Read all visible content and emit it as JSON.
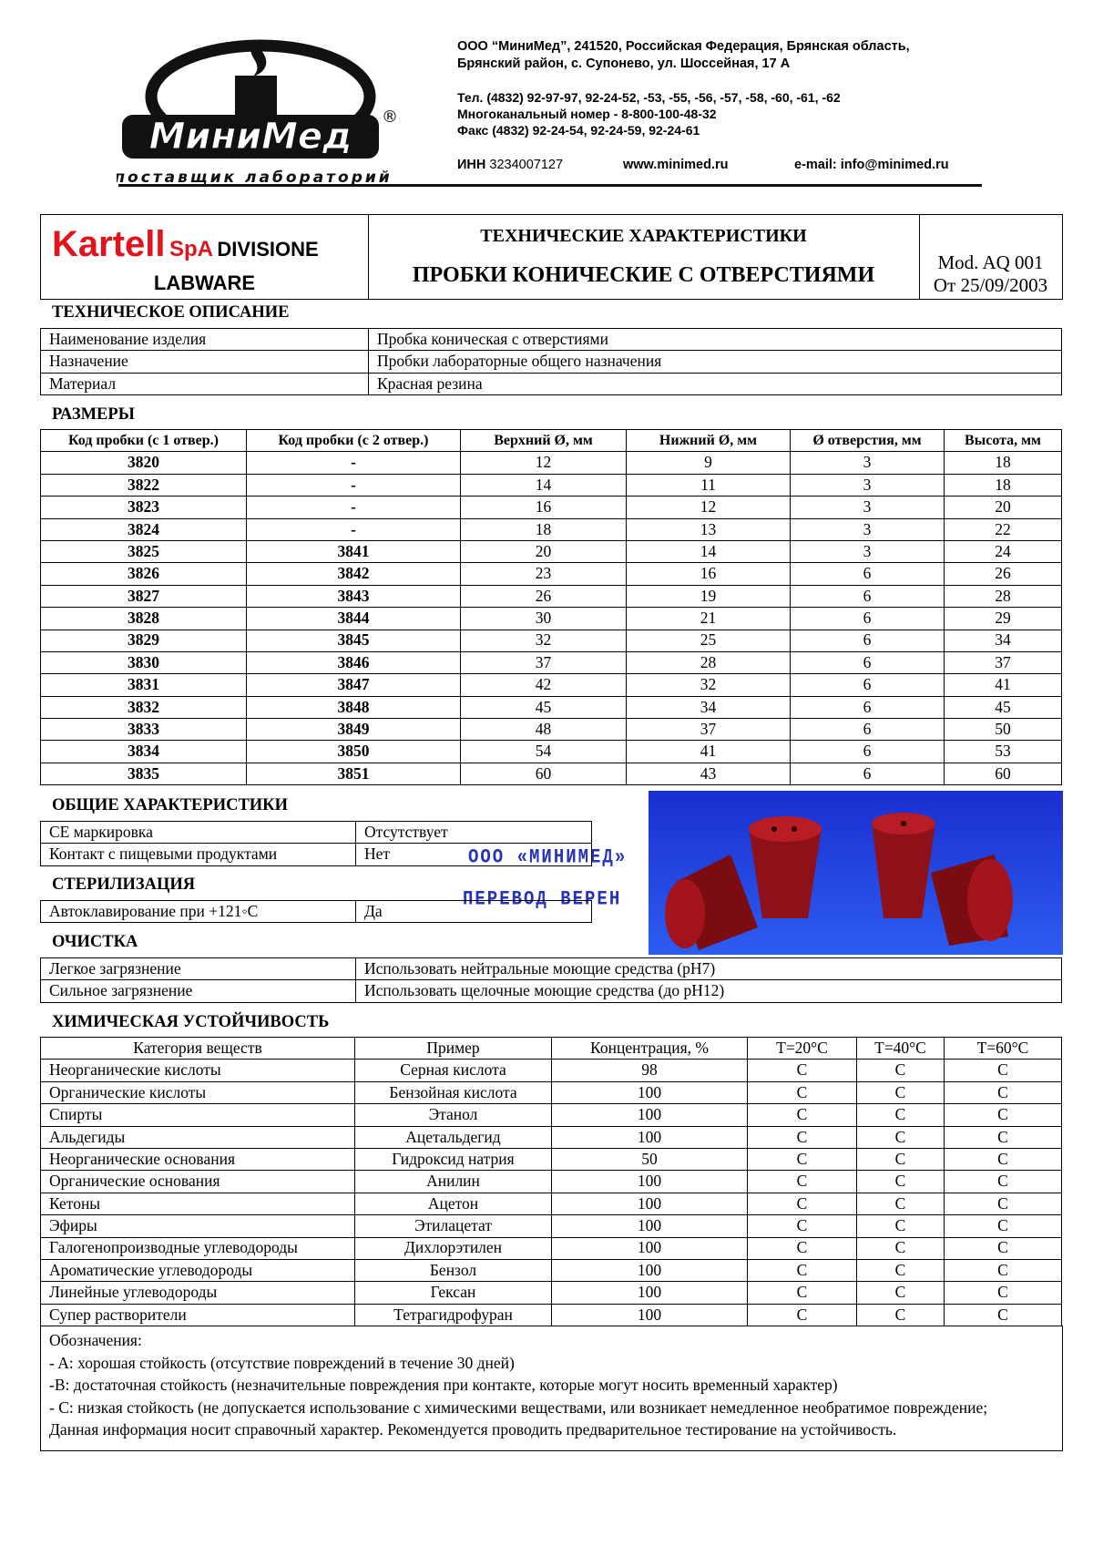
{
  "header": {
    "logo_name": "МиниМед",
    "logo_registered": "®",
    "logo_tagline": "поставщик лабораторий",
    "address": [
      "ООО “МиниМед”, 241520, Российская Федерация, Брянская область,",
      "Брянский район, с. Супонево, ул. Шоссейная, 17 А"
    ],
    "phones": [
      "Тел. (4832) 92-97-97, 92-24-52, -53, -55, -56, -57, -58, -60, -61, -62",
      "Многоканальный номер - 8-800-100-48-32",
      "Факс (4832) 92-24-54, 92-24-59, 92-24-61"
    ],
    "inn_label": "ИНН",
    "inn": "3234007127",
    "website": "www.minimed.ru",
    "email": "e-mail: info@minimed.ru"
  },
  "title_block": {
    "brand": "Kartell",
    "brand_suffix": "SpA",
    "division": "DIVISIONE",
    "division_line2": "LABWARE",
    "heading": "ТЕХНИЧЕСКИЕ ХАРАКТЕРИСТИКИ",
    "product": "ПРОБКИ КОНИЧЕСКИЕ С ОТВЕРСТИЯМИ",
    "model": "Mod. AQ 001",
    "date": "От 25/09/2003"
  },
  "description": {
    "title": "ТЕХНИЧЕСКОЕ ОПИСАНИЕ",
    "rows": [
      [
        "Наименование изделия",
        "Пробка коническая с отверстиями"
      ],
      [
        "Назначение",
        "Пробки лабораторные общего назначения"
      ],
      [
        "Материал",
        "Красная резина"
      ]
    ]
  },
  "dimensions": {
    "title": "РАЗМЕРЫ",
    "header": [
      "Код пробки (с 1 отвер.)",
      "Код пробки (с 2 отвер.)",
      "Верхний Ø, мм",
      "Нижний Ø, мм",
      "Ø отверстия, мм",
      "Высота, мм"
    ],
    "rows": [
      [
        3820,
        "-",
        12,
        9,
        3,
        18
      ],
      [
        3822,
        "-",
        14,
        11,
        3,
        18
      ],
      [
        3823,
        "-",
        16,
        12,
        3,
        20
      ],
      [
        3824,
        "-",
        18,
        13,
        3,
        22
      ],
      [
        3825,
        3841,
        20,
        14,
        3,
        24
      ],
      [
        3826,
        3842,
        23,
        16,
        6,
        26
      ],
      [
        3827,
        3843,
        26,
        19,
        6,
        28
      ],
      [
        3828,
        3844,
        30,
        21,
        6,
        29
      ],
      [
        3829,
        3845,
        32,
        25,
        6,
        34
      ],
      [
        3830,
        3846,
        37,
        28,
        6,
        37
      ],
      [
        3831,
        3847,
        42,
        32,
        6,
        41
      ],
      [
        3832,
        3848,
        45,
        34,
        6,
        45
      ],
      [
        3833,
        3849,
        48,
        37,
        6,
        50
      ],
      [
        3834,
        3850,
        54,
        41,
        6,
        53
      ],
      [
        3835,
        3851,
        60,
        43,
        6,
        60
      ]
    ]
  },
  "general": {
    "title": "ОБЩИЕ ХАРАКТЕРИСТИКИ",
    "rows": [
      [
        "CE маркировка",
        "Отсутствует"
      ],
      [
        "Контакт с пищевыми продуктами",
        "Нет"
      ]
    ]
  },
  "sterilization": {
    "title": "СТЕРИЛИЗАЦИЯ",
    "rows": [
      [
        "Автоклавирование при +121◦C",
        "Да"
      ]
    ]
  },
  "cleaning": {
    "title": "ОЧИСТКА",
    "rows": [
      [
        "Легкое загрязнение",
        "Использовать нейтральные моющие средства (pH7)"
      ],
      [
        "Сильное загрязнение",
        "Использовать щелочные моющие средства (до pH12)"
      ]
    ]
  },
  "stamp": {
    "line1": "ООО «МИНИМЕД»",
    "line2": "ПЕРЕВОД ВЕРЕН"
  },
  "chemical": {
    "title": "ХИМИЧЕСКАЯ УСТОЙЧИВОСТЬ",
    "header": [
      "Категория веществ",
      "Пример",
      "Концентрация, %",
      "T=20°C",
      "T=40°C",
      "T=60°C"
    ],
    "rows": [
      [
        "Неорганические кислоты",
        "Серная кислота",
        98,
        "C",
        "C",
        "C"
      ],
      [
        "Органические кислоты",
        "Бензойная кислота",
        100,
        "C",
        "C",
        "C"
      ],
      [
        "Спирты",
        "Этанол",
        100,
        "C",
        "C",
        "C"
      ],
      [
        "Альдегиды",
        "Ацетальдегид",
        100,
        "C",
        "C",
        "C"
      ],
      [
        "Неорганические основания",
        "Гидроксид натрия",
        50,
        "C",
        "C",
        "C"
      ],
      [
        "Органические основания",
        "Анилин",
        100,
        "C",
        "C",
        "C"
      ],
      [
        "Кетоны",
        "Ацетон",
        100,
        "C",
        "C",
        "C"
      ],
      [
        "Эфиры",
        "Этилацетат",
        100,
        "C",
        "C",
        "C"
      ],
      [
        "Галогенопроизводные углеводороды",
        "Дихлорэтилен",
        100,
        "C",
        "C",
        "C"
      ],
      [
        "Ароматические углеводороды",
        "Бензол",
        100,
        "C",
        "C",
        "C"
      ],
      [
        "Линейные углеводороды",
        "Гексан",
        100,
        "C",
        "C",
        "C"
      ],
      [
        "Супер растворители",
        "Тетрагидрофуран",
        100,
        "C",
        "C",
        "C"
      ]
    ],
    "notes": [
      "Обозначения:",
      "- A: хорошая стойкость (отсутствие повреждений в течение 30 дней)",
      "-B: достаточная стойкость (незначительные повреждения при контакте, которые могут носить временный характер)",
      "- C: низкая стойкость (не допускается использование с химическими веществами, или возникает немедленное необратимое повреждение;",
      "Данная информация носит справочный характер. Рекомендуется проводить предварительное тестирование на устойчивость."
    ]
  }
}
